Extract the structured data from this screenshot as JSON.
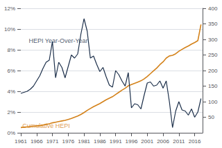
{
  "chart_data": {
    "type": "line",
    "x": [
      1961,
      1962,
      1963,
      1964,
      1965,
      1966,
      1967,
      1968,
      1969,
      1970,
      1971,
      1972,
      1973,
      1974,
      1975,
      1976,
      1977,
      1978,
      1979,
      1980,
      1981,
      1982,
      1983,
      1984,
      1985,
      1986,
      1987,
      1988,
      1989,
      1990,
      1991,
      1992,
      1993,
      1994,
      1995,
      1996,
      1997,
      1998,
      1999,
      2000,
      2001,
      2002,
      2003,
      2004,
      2005,
      2006,
      2007,
      2008,
      2009,
      2010,
      2011,
      2012,
      2013,
      2014,
      2015,
      2016,
      2017,
      2018
    ],
    "series": [
      {
        "name": "HEPI Year-Over-Year",
        "color": "#1c2f4a",
        "values": [
          3.8,
          3.9,
          4.0,
          4.2,
          4.5,
          5.0,
          5.5,
          6.2,
          6.8,
          7.0,
          8.8,
          5.3,
          6.8,
          6.3,
          5.3,
          6.4,
          7.5,
          7.2,
          7.6,
          9.5,
          11.0,
          9.8,
          7.2,
          7.4,
          6.6,
          5.9,
          6.3,
          5.4,
          4.6,
          4.4,
          6.0,
          5.6,
          5.0,
          4.5,
          5.8,
          2.4,
          2.8,
          2.7,
          2.3,
          3.6,
          4.8,
          4.9,
          4.5,
          4.6,
          5.0,
          4.3,
          5.0,
          3.0,
          0.5,
          2.1,
          3.0,
          2.2,
          2.1,
          1.7,
          2.3,
          1.5,
          2.0,
          3.3
        ]
      },
      {
        "name": "Cumulative HEPI",
        "color": "#d4821a",
        "axis": "y2",
        "values": [
          17,
          18,
          19,
          20,
          21,
          22,
          23,
          25,
          27,
          29,
          32,
          34,
          36,
          38,
          40,
          43,
          46,
          50,
          54,
          59,
          65,
          72,
          78,
          84,
          89,
          94,
          100,
          106,
          111,
          116,
          123,
          130,
          137,
          143,
          151,
          155,
          159,
          163,
          167,
          173,
          181,
          190,
          199,
          208,
          219,
          228,
          240,
          247,
          249,
          254,
          262,
          268,
          274,
          279,
          285,
          290,
          296,
          348
        ]
      }
    ],
    "xlim": [
      1961,
      2018.5
    ],
    "xticks": [
      1961,
      1966,
      1971,
      1976,
      1981,
      1986,
      1991,
      1996,
      2001,
      2006,
      2011,
      2016
    ],
    "ylim": [
      0,
      12
    ],
    "yticks": [
      {
        "value": 0,
        "label": "0%"
      },
      {
        "value": 2,
        "label": "2%"
      },
      {
        "value": 4,
        "label": "4%"
      },
      {
        "value": 6,
        "label": "6%"
      },
      {
        "value": 8,
        "label": "8%"
      },
      {
        "value": 10,
        "label": "10%"
      },
      {
        "value": 12,
        "label": "12%"
      }
    ],
    "y2lim": [
      0,
      400
    ],
    "y2ticks": [
      50,
      100,
      150,
      200,
      250,
      300,
      350,
      400
    ],
    "grid": true,
    "annotations": [
      {
        "text": "HEPI Year-Over-Year",
        "x": 1963.5,
        "y": 8.6,
        "color": "#1c2f4a"
      },
      {
        "text": "Cumulative HEPI",
        "x": 1961.5,
        "y": 0.35,
        "color": "#d4821a"
      }
    ]
  }
}
